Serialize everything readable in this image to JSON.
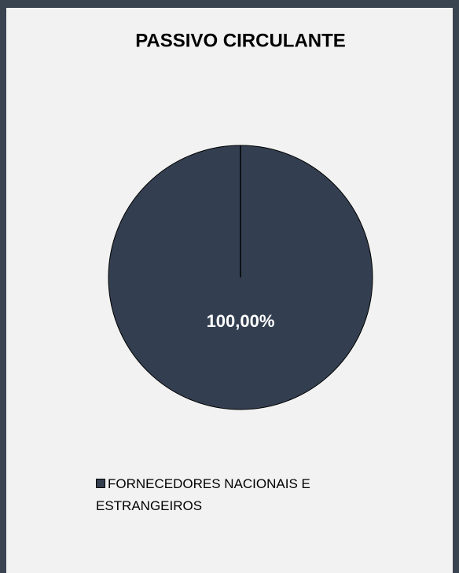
{
  "chart_data": {
    "type": "pie",
    "title": "PASSIVO CIRCULANTE",
    "categories": [
      "FORNECEDORES NACIONAIS E ESTRANGEIROS"
    ],
    "values": [
      100
    ],
    "value_labels": [
      "100,00%"
    ],
    "colors": [
      "#333f50"
    ],
    "legend": "bottom"
  }
}
